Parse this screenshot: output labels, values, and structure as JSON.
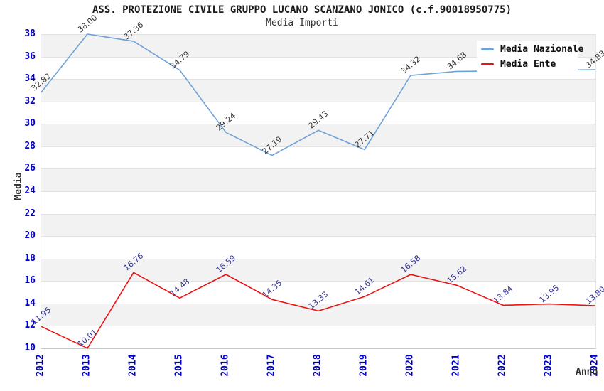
{
  "header": {
    "title": "ASS. PROTEZIONE CIVILE GRUPPO LUCANO SCANZANO JONICO (c.f.90018950775)",
    "subtitle": "Media Importi"
  },
  "chart_data": {
    "type": "line",
    "x": [
      2012,
      2013,
      2014,
      2015,
      2016,
      2017,
      2018,
      2019,
      2020,
      2021,
      2022,
      2023,
      2024
    ],
    "xlabel": "Anno",
    "ylabel": "Media",
    "ylim": [
      10,
      38
    ],
    "ytick_step": 2,
    "grid": "horizontal-alternating-bands",
    "legend_position": "top-right",
    "series": [
      {
        "id": "media-nazionale",
        "name": "Media Nazionale",
        "color": "#6ea2d9",
        "label_color": "#333333",
        "values": [
          32.82,
          38.0,
          37.36,
          34.79,
          29.24,
          27.19,
          29.43,
          27.71,
          34.32,
          34.68,
          34.72,
          34.78,
          34.83
        ],
        "point_labels": [
          "32.82",
          "38.00",
          "37.36",
          "34.79",
          "29.24",
          "27.19",
          "29.43",
          "27.71",
          "34.32",
          "34.68",
          "",
          "",
          "34.83"
        ]
      },
      {
        "id": "media-ente",
        "name": "Media Ente",
        "color": "#ee1111",
        "label_color": "#333399",
        "values": [
          11.95,
          10.01,
          16.76,
          14.48,
          16.59,
          14.35,
          13.33,
          14.61,
          16.58,
          15.62,
          13.84,
          13.95,
          13.8
        ],
        "point_labels": [
          "11.95",
          "10.01",
          "16.76",
          "14.48",
          "16.59",
          "14.35",
          "13.33",
          "14.61",
          "16.58",
          "15.62",
          "13.84",
          "13.95",
          "13.80"
        ]
      }
    ]
  },
  "colors": {
    "axis_tick": "#0000cc",
    "axis_title": "#333333",
    "band_gray": "#f2f2f2",
    "band_white": "#ffffff",
    "gridline": "#e2e2e2",
    "axis_border": "#c8c8c8",
    "title_text": "#1a1a1a"
  }
}
